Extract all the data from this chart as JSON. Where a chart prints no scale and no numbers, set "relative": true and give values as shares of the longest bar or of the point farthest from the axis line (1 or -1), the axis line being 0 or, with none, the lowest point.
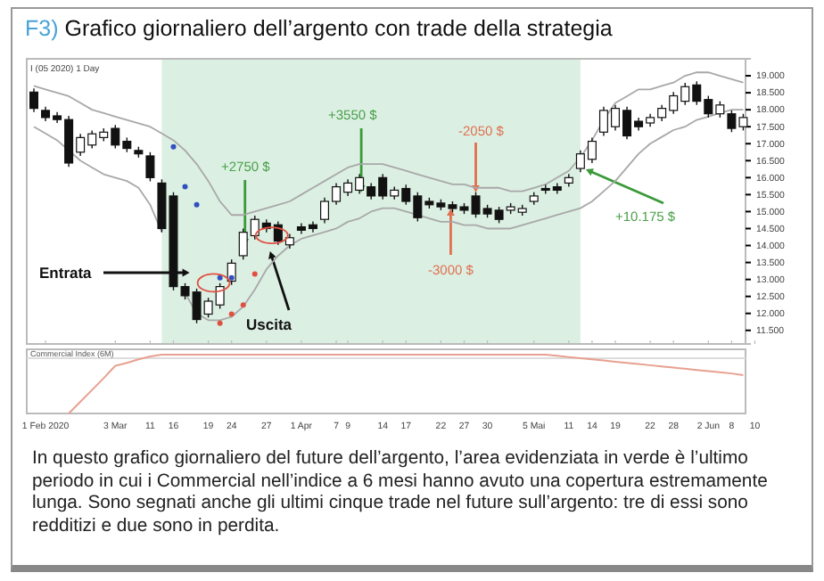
{
  "chart_data": [
    {
      "type": "candlestick",
      "title": "F3) Grafico giornaliero dell’argento con trade della strategia",
      "tick_labels": "y",
      "categories": [
        null,
        null,
        null,
        null,
        null,
        null,
        null,
        null,
        null,
        null,
        null,
        null,
        null,
        null,
        null,
        null,
        null,
        null,
        null,
        null,
        null,
        null,
        null,
        null,
        null,
        null,
        null,
        null,
        null,
        null,
        null,
        null,
        null,
        null,
        null,
        null,
        null,
        null,
        null,
        null,
        null,
        null,
        null,
        null,
        null,
        null,
        null,
        null,
        null,
        null,
        null,
        null,
        null,
        null,
        null,
        null,
        null,
        null,
        null,
        null,
        null,
        null,
        null
      ],
      "ohlc": [
        [
          18520,
          18630,
          17930,
          18040
        ],
        [
          17980,
          18090,
          17660,
          17770
        ],
        [
          17820,
          17930,
          17610,
          17710
        ],
        [
          17710,
          17820,
          16320,
          16430
        ],
        [
          16750,
          17290,
          16640,
          17180
        ],
        [
          16960,
          17390,
          16860,
          17290
        ],
        [
          17180,
          17450,
          17070,
          17340
        ],
        [
          17450,
          17550,
          16860,
          16960
        ],
        [
          17070,
          17180,
          16750,
          16860
        ],
        [
          16800,
          16910,
          16590,
          16700
        ],
        [
          16640,
          16750,
          15890,
          16000
        ],
        [
          15840,
          15950,
          14390,
          14500
        ],
        [
          15460,
          15570,
          12680,
          12790
        ],
        [
          12790,
          12890,
          12410,
          12520
        ],
        [
          12630,
          12730,
          11710,
          11820
        ],
        [
          11980,
          12460,
          11880,
          12360
        ],
        [
          12250,
          12890,
          12140,
          12790
        ],
        [
          12950,
          13590,
          12840,
          13480
        ],
        [
          13700,
          14500,
          13590,
          14390
        ],
        [
          14290,
          14880,
          14180,
          14770
        ],
        [
          14660,
          14770,
          14390,
          14500
        ],
        [
          14610,
          14710,
          14020,
          14130
        ],
        [
          14020,
          14340,
          13910,
          14230
        ],
        [
          14550,
          14660,
          14340,
          14450
        ],
        [
          14610,
          14710,
          14390,
          14500
        ],
        [
          14770,
          15410,
          14660,
          15300
        ],
        [
          15300,
          15840,
          15200,
          15730
        ],
        [
          15570,
          15950,
          15460,
          15840
        ],
        [
          15630,
          16110,
          15520,
          16000
        ],
        [
          15730,
          15840,
          15360,
          15460
        ],
        [
          16000,
          16110,
          15360,
          15460
        ],
        [
          15460,
          15730,
          15360,
          15630
        ],
        [
          15680,
          15790,
          15200,
          15300
        ],
        [
          15460,
          15570,
          14710,
          14820
        ],
        [
          15300,
          15410,
          15090,
          15200
        ],
        [
          15250,
          15360,
          15040,
          15140
        ],
        [
          15200,
          15300,
          14980,
          15090
        ],
        [
          15140,
          15250,
          14930,
          15040
        ],
        [
          15460,
          15570,
          14820,
          14930
        ],
        [
          15090,
          15200,
          14820,
          14930
        ],
        [
          15040,
          15140,
          14660,
          14770
        ],
        [
          15040,
          15250,
          14930,
          15140
        ],
        [
          14980,
          15200,
          14880,
          15090
        ],
        [
          15300,
          15570,
          15200,
          15460
        ],
        [
          15680,
          15790,
          15520,
          15630
        ],
        [
          15730,
          15840,
          15520,
          15630
        ],
        [
          15840,
          16110,
          15730,
          16000
        ],
        [
          16270,
          16800,
          16160,
          16700
        ],
        [
          16540,
          17180,
          16430,
          17070
        ],
        [
          17340,
          18090,
          17230,
          17980
        ],
        [
          17500,
          18140,
          17390,
          18040
        ],
        [
          17980,
          18090,
          17130,
          17230
        ],
        [
          17660,
          17770,
          17390,
          17500
        ],
        [
          17610,
          17880,
          17500,
          17770
        ],
        [
          17770,
          18140,
          17660,
          18040
        ],
        [
          17980,
          18520,
          17880,
          18410
        ],
        [
          18250,
          18790,
          18140,
          18680
        ],
        [
          18730,
          18840,
          18140,
          18250
        ],
        [
          18300,
          18410,
          17770,
          17880
        ],
        [
          17880,
          18250,
          17770,
          18140
        ],
        [
          17880,
          17980,
          17340,
          17450
        ],
        [
          17500,
          17880,
          17390,
          17770
        ],
        null
      ],
      "series": [
        {
          "type": "line",
          "color": "#a8a8a8",
          "values": [
            18700,
            18600,
            18500,
            18400,
            18200,
            18000,
            17900,
            17800,
            17700,
            17600,
            17500,
            17300,
            17100,
            16800,
            16400,
            15900,
            15300,
            14900,
            14900,
            15000,
            15100,
            15200,
            15300,
            15500,
            15700,
            15900,
            16100,
            16300,
            16400,
            16400,
            16400,
            16300,
            16200,
            16100,
            16000,
            15900,
            15800,
            15800,
            15700,
            15700,
            15700,
            15600,
            15600,
            15700,
            15800,
            16000,
            16200,
            16600,
            17100,
            17700,
            18200,
            18400,
            18600,
            18600,
            18700,
            18800,
            19000,
            19100,
            19100,
            19000,
            18900,
            18800,
            null
          ]
        },
        {
          "type": "line",
          "color": "#a8a8a8",
          "values": [
            17500,
            17300,
            17100,
            16800,
            16500,
            16300,
            16100,
            16000,
            15900,
            15700,
            15200,
            14400,
            null,
            12600,
            12000,
            11800,
            11800,
            11900,
            12200,
            12700,
            13300,
            13700,
            14000,
            14200,
            14300,
            14400,
            14500,
            14700,
            14800,
            15000,
            15100,
            15100,
            15000,
            14900,
            14800,
            14700,
            14700,
            14600,
            14600,
            14500,
            14500,
            14500,
            14600,
            14700,
            14800,
            14900,
            15000,
            15100,
            15300,
            15600,
            15900,
            16300,
            16700,
            17000,
            17200,
            17400,
            17500,
            17700,
            17800,
            17900,
            18000,
            18000,
            null
          ]
        },
        {
          "type": "scatter",
          "color": "#3050c0",
          "values": [
            null,
            null,
            null,
            null,
            null,
            null,
            null,
            null,
            null,
            null,
            null,
            null,
            16910,
            15730,
            15200,
            null,
            13050,
            13050,
            null,
            null,
            null,
            null,
            null,
            null,
            null,
            null,
            null,
            null,
            null,
            null,
            null,
            null,
            null,
            null,
            null,
            null,
            null,
            null,
            null,
            null,
            null,
            null,
            null,
            null,
            null,
            null,
            null,
            null,
            null,
            null,
            null,
            null,
            null,
            null,
            null,
            null,
            null,
            null,
            null,
            null,
            null,
            null,
            null
          ]
        },
        {
          "type": "scatter",
          "color": "#e05040",
          "values": [
            null,
            null,
            null,
            null,
            null,
            null,
            null,
            null,
            null,
            null,
            null,
            null,
            null,
            null,
            null,
            null,
            11710,
            11980,
            12250,
            13160,
            null,
            null,
            null,
            null,
            null,
            null,
            null,
            null,
            null,
            null,
            null,
            null,
            null,
            null,
            null,
            null,
            null,
            null,
            null,
            null,
            null,
            null,
            null,
            null,
            null,
            null,
            null,
            null,
            null,
            null,
            null,
            null,
            null,
            null,
            null,
            null,
            null,
            null,
            null,
            null,
            null,
            null,
            null
          ]
        }
      ],
      "ylim": [
        11100,
        19500
      ],
      "yticks": [
        {
          "value": 11500,
          "label": "11.500"
        },
        {
          "value": 12000,
          "label": "12.000"
        },
        {
          "value": 12500,
          "label": "12.500"
        },
        {
          "value": 13000,
          "label": "13.000"
        },
        {
          "value": 13500,
          "label": "13.500"
        },
        {
          "value": 14000,
          "label": "14.000"
        },
        {
          "value": 14500,
          "label": "14.500"
        },
        {
          "value": 15000,
          "label": "15.000"
        },
        {
          "value": 15500,
          "label": "15.500"
        },
        {
          "value": 16000,
          "label": "16.000"
        },
        {
          "value": 16500,
          "label": "16.500"
        },
        {
          "value": 17000,
          "label": "17.000"
        },
        {
          "value": 17500,
          "label": "17.500"
        },
        {
          "value": 18000,
          "label": "18.000"
        },
        {
          "value": 18500,
          "label": "18.500"
        },
        {
          "value": 19000,
          "label": "19.000"
        }
      ],
      "annotations": [
        "I (05 2020) 1 Day",
        "Entrata",
        "Uscita",
        "+2750 $",
        "+3550 $",
        "-2050 $",
        "-3000 $",
        "+10.175 $",
        "In questo grafico giornaliero del future dell’argento, l’area evidenziata in verde è l’ultimo periodo in cui i Commercial nell’indice a 6 mesi hanno avuto una copertura estremamente lunga. Sono segnati anche gli ultimi cinque trade nel future sull’argento: tre di essi sono redditizi e due sono in perdita."
      ]
    },
    {
      "type": "line",
      "title": "Commercial Index (6M)",
      "relative": true,
      "tick_labels": "x",
      "categories": [
        null,
        "1 Feb 2020",
        null,
        null,
        null,
        null,
        null,
        "3 Mar",
        null,
        null,
        "11",
        null,
        "16",
        null,
        null,
        "19",
        null,
        "24",
        null,
        null,
        "27",
        null,
        null,
        "1 Apr",
        null,
        null,
        "7",
        "9",
        null,
        null,
        "14",
        null,
        "17",
        null,
        null,
        "22",
        null,
        "27",
        null,
        "30",
        null,
        null,
        null,
        "5 Mai",
        null,
        null,
        "11",
        null,
        "14",
        null,
        "19",
        null,
        null,
        "22",
        null,
        "28",
        null,
        null,
        "2 Jun",
        null,
        "8",
        null,
        "10"
      ],
      "series": [
        {
          "color": "#e8a090",
          "values": [
            null,
            null,
            null,
            0,
            0.2,
            0.4,
            0.6,
            0.81,
            0.86,
            0.92,
            0.97,
            1,
            1,
            1,
            1,
            1,
            1,
            1,
            1,
            1,
            1,
            1,
            1,
            1,
            1,
            1,
            1,
            1,
            1,
            1,
            1,
            1,
            1,
            1,
            1,
            1,
            1,
            1,
            1,
            1,
            1,
            1,
            1,
            1,
            1,
            0.98,
            0.96,
            0.94,
            0.92,
            0.9,
            0.88,
            0.86,
            0.84,
            0.82,
            0.8,
            0.78,
            0.76,
            0.74,
            0.72,
            0.7,
            0.68,
            0.65,
            null
          ]
        }
      ]
    }
  ]
}
